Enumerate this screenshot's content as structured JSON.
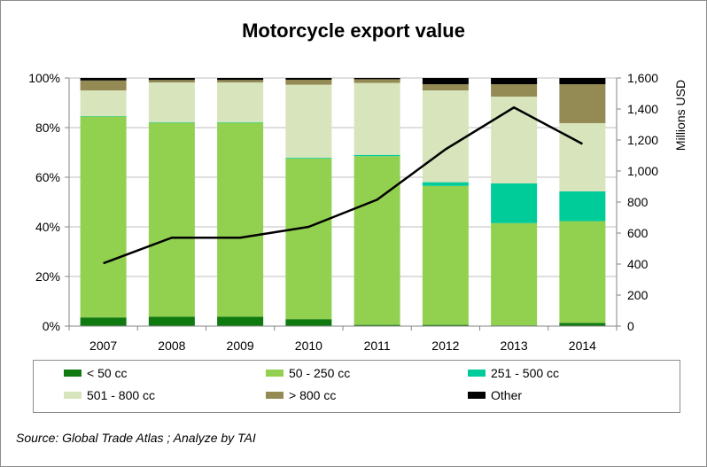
{
  "chart_data": {
    "type": "bar",
    "stacked": true,
    "title": "Motorcycle export value",
    "categories": [
      "2007",
      "2008",
      "2009",
      "2010",
      "2011",
      "2012",
      "2013",
      "2014"
    ],
    "y_left": {
      "ticks": [
        "0%",
        "20%",
        "40%",
        "60%",
        "80%",
        "100%"
      ],
      "ylim": [
        0,
        100
      ]
    },
    "y_right": {
      "label": "Millions USD",
      "ticks": [
        "0",
        "200",
        "400",
        "600",
        "800",
        "1,000",
        "1,200",
        "1,400",
        "1,600"
      ],
      "ylim": [
        0,
        1600
      ]
    },
    "grid": true,
    "legend_position": "bottom",
    "series": [
      {
        "name": "< 50 cc",
        "color": "#0f7a10",
        "values": [
          3.5,
          3.8,
          3.8,
          2.8,
          0.5,
          0.5,
          0.3,
          1.3
        ]
      },
      {
        "name": "50 - 250 cc",
        "color": "#92d050",
        "values": [
          81.0,
          78.2,
          78.2,
          64.7,
          68.0,
          56.0,
          41.2,
          41.0
        ]
      },
      {
        "name": "251 - 500 cc",
        "color": "#00cc99",
        "values": [
          0.2,
          0.2,
          0.2,
          0.3,
          0.5,
          1.5,
          16.0,
          12.0
        ]
      },
      {
        "name": "501 - 800 cc",
        "color": "#d8e4bc",
        "values": [
          10.3,
          16.0,
          16.0,
          29.5,
          29.0,
          37.0,
          35.0,
          27.5
        ]
      },
      {
        "name": "> 800 cc",
        "color": "#948a54",
        "values": [
          4.0,
          1.0,
          1.0,
          2.0,
          1.5,
          2.5,
          5.0,
          15.7
        ]
      },
      {
        "name": "Other",
        "color": "#000000",
        "values": [
          1.0,
          0.8,
          0.8,
          0.7,
          0.5,
          2.5,
          2.5,
          2.5
        ]
      }
    ],
    "line": {
      "axis": "right",
      "color": "#000000",
      "values": [
        405,
        570,
        570,
        640,
        815,
        1140,
        1410,
        1175
      ]
    }
  },
  "source_note": "Source: Global Trade Atlas ; Analyze by TAI"
}
